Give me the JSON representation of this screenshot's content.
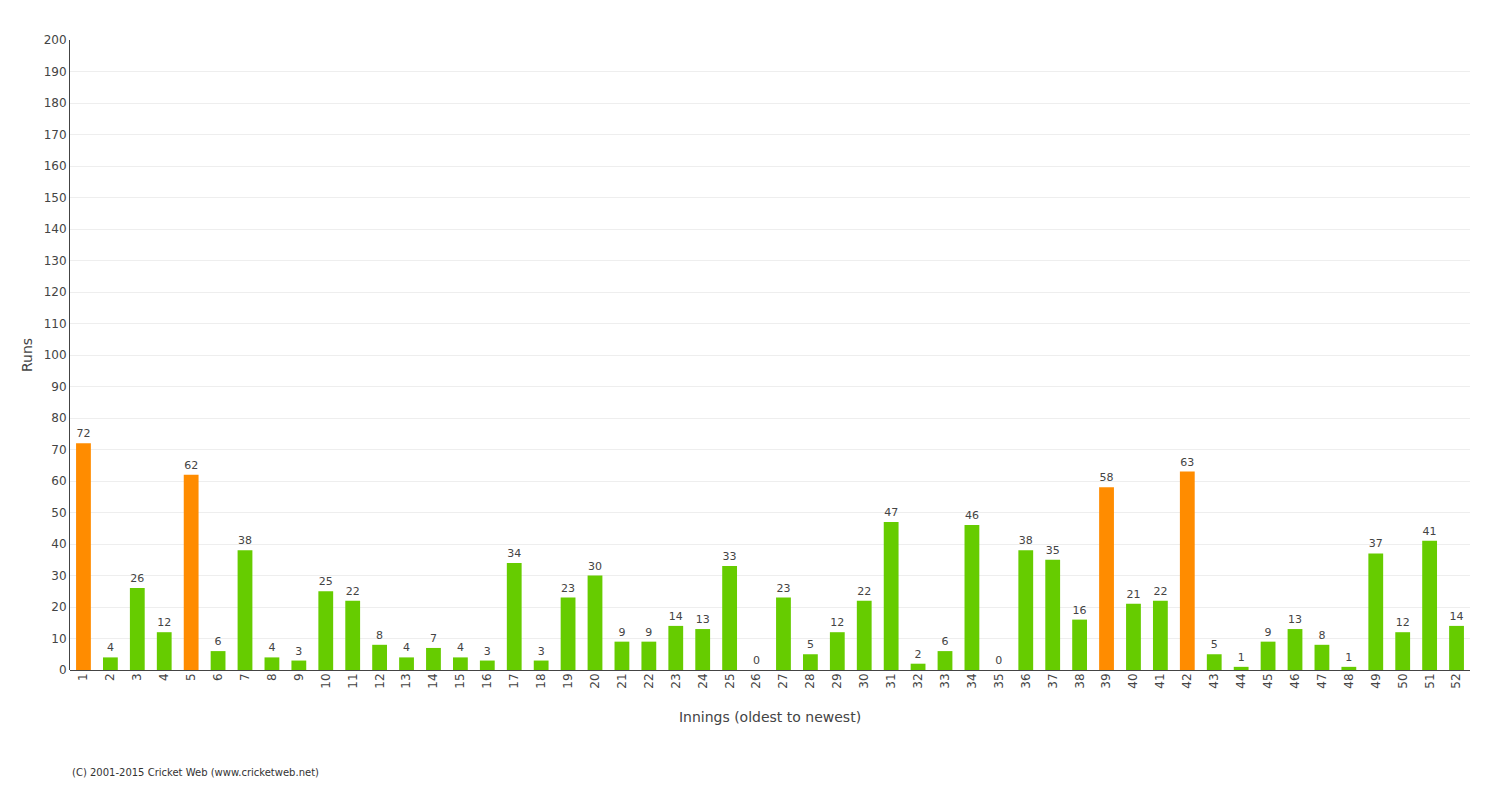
{
  "chart_data": {
    "type": "bar",
    "categories": [
      "1",
      "2",
      "3",
      "4",
      "5",
      "6",
      "7",
      "8",
      "9",
      "10",
      "11",
      "12",
      "13",
      "14",
      "15",
      "16",
      "17",
      "18",
      "19",
      "20",
      "21",
      "22",
      "23",
      "24",
      "25",
      "26",
      "27",
      "28",
      "29",
      "30",
      "31",
      "32",
      "33",
      "34",
      "35",
      "36",
      "37",
      "38",
      "39",
      "40",
      "41",
      "42",
      "43",
      "44",
      "45",
      "46",
      "47",
      "48",
      "49",
      "50",
      "51",
      "52"
    ],
    "values": [
      72,
      4,
      26,
      12,
      62,
      6,
      38,
      4,
      3,
      25,
      22,
      8,
      4,
      7,
      4,
      3,
      34,
      3,
      23,
      30,
      9,
      9,
      14,
      13,
      33,
      0,
      23,
      5,
      12,
      22,
      47,
      2,
      6,
      46,
      0,
      38,
      35,
      16,
      58,
      21,
      22,
      63,
      5,
      1,
      9,
      13,
      8,
      1,
      37,
      12,
      41,
      14
    ],
    "colors": [
      "#ff8c00",
      "#66cc00",
      "#66cc00",
      "#66cc00",
      "#ff8c00",
      "#66cc00",
      "#66cc00",
      "#66cc00",
      "#66cc00",
      "#66cc00",
      "#66cc00",
      "#66cc00",
      "#66cc00",
      "#66cc00",
      "#66cc00",
      "#66cc00",
      "#66cc00",
      "#66cc00",
      "#66cc00",
      "#66cc00",
      "#66cc00",
      "#66cc00",
      "#66cc00",
      "#66cc00",
      "#66cc00",
      "#66cc00",
      "#66cc00",
      "#66cc00",
      "#66cc00",
      "#66cc00",
      "#66cc00",
      "#66cc00",
      "#66cc00",
      "#66cc00",
      "#66cc00",
      "#66cc00",
      "#66cc00",
      "#66cc00",
      "#ff8c00",
      "#66cc00",
      "#66cc00",
      "#ff8c00",
      "#66cc00",
      "#66cc00",
      "#66cc00",
      "#66cc00",
      "#66cc00",
      "#66cc00",
      "#66cc00",
      "#66cc00",
      "#66cc00",
      "#66cc00"
    ],
    "xlabel": "Innings (oldest to newest)",
    "ylabel": "Runs",
    "ylim": [
      0,
      200
    ],
    "yticks": [
      0,
      10,
      20,
      30,
      40,
      50,
      60,
      70,
      80,
      90,
      100,
      110,
      120,
      130,
      140,
      150,
      160,
      170,
      180,
      190,
      200
    ],
    "grid": true,
    "data_labels": true,
    "annotations": [
      "(C) 2001-2015 Cricket Web (www.cricketweb.net)"
    ]
  }
}
